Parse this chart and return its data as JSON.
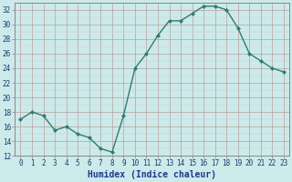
{
  "x": [
    0,
    1,
    2,
    3,
    4,
    5,
    6,
    7,
    8,
    9,
    10,
    11,
    12,
    13,
    14,
    15,
    16,
    17,
    18,
    19,
    20,
    21,
    22,
    23
  ],
  "y": [
    17,
    18,
    17.5,
    15.5,
    16,
    15,
    14.5,
    13,
    12.5,
    17.5,
    24,
    26,
    28.5,
    30.5,
    30.5,
    31.5,
    32.5,
    32.5,
    32,
    29.5,
    26,
    25,
    24,
    23.5
  ],
  "line_color": "#2e7d6e",
  "marker": "D",
  "marker_size": 2,
  "bg_color": "#cceaea",
  "grid_major_color": "#b8a0a0",
  "grid_minor_color": "#ddc8c8",
  "xlabel": "Humidex (Indice chaleur)",
  "xlabel_color": "#1a3a8a",
  "xlim": [
    -0.5,
    23.5
  ],
  "ylim": [
    12,
    33
  ],
  "yticks": [
    12,
    14,
    16,
    18,
    20,
    22,
    24,
    26,
    28,
    30,
    32
  ],
  "xticks": [
    0,
    1,
    2,
    3,
    4,
    5,
    6,
    7,
    8,
    9,
    10,
    11,
    12,
    13,
    14,
    15,
    16,
    17,
    18,
    19,
    20,
    21,
    22,
    23
  ],
  "tick_label_size": 5.5,
  "xlabel_size": 7,
  "line_width": 1.0,
  "spine_color": "#888888"
}
